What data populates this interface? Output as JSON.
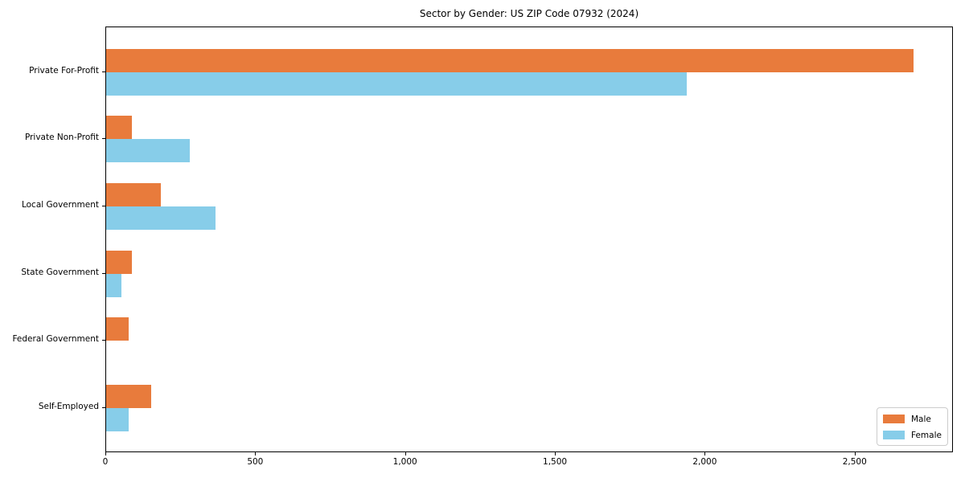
{
  "chart_data": {
    "type": "bar",
    "orientation": "horizontal",
    "title": "Sector by Gender: US ZIP Code 07932 (2024)",
    "categories": [
      "Private For-Profit",
      "Private Non-Profit",
      "Local Government",
      "State Government",
      "Federal Government",
      "Self-Employed"
    ],
    "series": [
      {
        "name": "Male",
        "color": "#e87b3c",
        "values": [
          2693,
          86,
          182,
          86,
          75,
          150
        ]
      },
      {
        "name": "Female",
        "color": "#87cde9",
        "values": [
          1937,
          279,
          365,
          51,
          0,
          75
        ]
      }
    ],
    "xlabel": "",
    "ylabel": "",
    "xlim": [
      0,
      2828
    ],
    "xticks": [
      0,
      500,
      1000,
      1500,
      2000,
      2500
    ],
    "xtick_labels": [
      "0",
      "500",
      "1,000",
      "1,500",
      "2,000",
      "2,500"
    ],
    "grid": false,
    "legend": {
      "position": "lower right",
      "entries": [
        "Male",
        "Female"
      ]
    },
    "colors": {
      "axis": "#000000",
      "background": "#ffffff",
      "legend_border": "#cccccc"
    }
  }
}
